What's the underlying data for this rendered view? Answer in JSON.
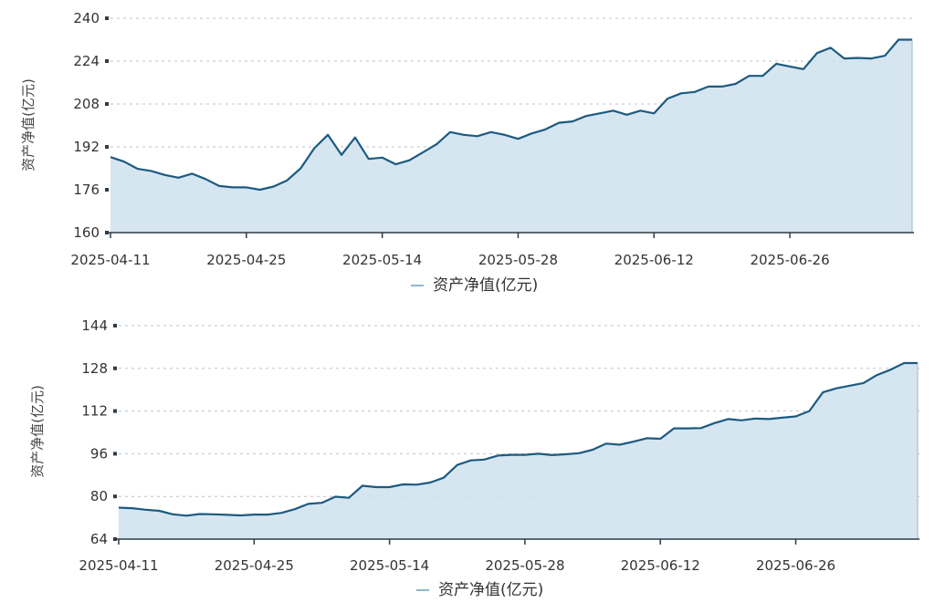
{
  "chart_data": [
    {
      "type": "area",
      "ylabel": "资产净值(亿元)",
      "ylim": [
        160,
        240
      ],
      "yticks": [
        160,
        176,
        192,
        208,
        224,
        240
      ],
      "x_tick_labels": [
        "2025-04-11",
        "2025-04-25",
        "2025-05-14",
        "2025-05-28",
        "2025-06-12",
        "2025-06-26"
      ],
      "grid": true,
      "legend_position": "bottom",
      "series": [
        {
          "name": "资产净值(亿元)",
          "values": [
            188.2,
            186.5,
            183.8,
            183.0,
            181.5,
            180.5,
            182.0,
            180.0,
            177.4,
            176.9,
            176.9,
            176.0,
            177.2,
            179.5,
            184.0,
            191.5,
            196.5,
            189.0,
            195.5,
            187.5,
            188.0,
            185.5,
            187.0,
            190.0,
            193.0,
            197.5,
            196.5,
            196.0,
            197.5,
            196.5,
            195.0,
            197.0,
            198.5,
            201.0,
            201.5,
            203.5,
            204.5,
            205.5,
            204.0,
            205.5,
            204.5,
            210.0,
            212.0,
            212.5,
            214.5,
            214.5,
            215.5,
            218.5,
            218.5,
            223.0,
            222.0,
            221.0,
            227.0,
            229.0,
            225.0,
            225.2,
            225.0,
            226.0,
            232.0,
            232.0
          ]
        }
      ]
    },
    {
      "type": "area",
      "ylabel": "资产净值(亿元)",
      "ylim": [
        64,
        144
      ],
      "yticks": [
        64,
        80,
        96,
        112,
        128,
        144
      ],
      "x_tick_labels": [
        "2025-04-11",
        "2025-04-25",
        "2025-05-14",
        "2025-05-28",
        "2025-06-12",
        "2025-06-26"
      ],
      "grid": true,
      "legend_position": "bottom",
      "series": [
        {
          "name": "资产净值(亿元)",
          "values": [
            75.8,
            75.6,
            75.0,
            74.6,
            73.3,
            72.8,
            73.4,
            73.3,
            73.1,
            72.9,
            73.2,
            73.2,
            73.8,
            75.2,
            77.2,
            77.6,
            79.9,
            79.5,
            84.0,
            83.5,
            83.5,
            84.5,
            84.4,
            85.2,
            87.0,
            91.8,
            93.5,
            93.8,
            95.3,
            95.6,
            95.6,
            96.0,
            95.5,
            95.8,
            96.2,
            97.5,
            99.8,
            99.4,
            100.5,
            101.8,
            101.6,
            105.5,
            105.5,
            105.6,
            107.5,
            109.0,
            108.5,
            109.2,
            109.0,
            109.5,
            110.0,
            112.0,
            119.0,
            120.5,
            121.5,
            122.5,
            125.5,
            127.5,
            130.0,
            130.0
          ]
        }
      ]
    }
  ],
  "colors": {
    "line": "#1d5a80",
    "fill": "#cfe2ee",
    "legend_marker": "#8db8d2"
  }
}
